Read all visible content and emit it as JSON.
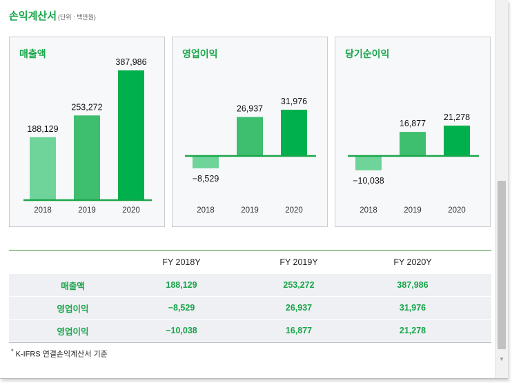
{
  "section": {
    "title": "손익계산서",
    "unit": "(단위 : 백만원)"
  },
  "colors": {
    "accent": "#1aa64a",
    "bar_2018": "#6fd49a",
    "bar_2019": "#3ebe6f",
    "bar_2020": "#00b04c",
    "baseline": "#1aa64a"
  },
  "chart_data": [
    {
      "type": "bar",
      "title": "매출액",
      "categories": [
        "2018",
        "2019",
        "2020"
      ],
      "values": [
        188129,
        253272,
        387986
      ],
      "value_labels": [
        "188,129",
        "253,272",
        "387,986"
      ],
      "ylim": [
        0,
        390000
      ]
    },
    {
      "type": "bar",
      "title": "영업이익",
      "categories": [
        "2018",
        "2019",
        "2020"
      ],
      "values": [
        -8529,
        26937,
        31976
      ],
      "value_labels": [
        "−8,529",
        "26,937",
        "31,976"
      ],
      "ylim": [
        -10000,
        40000
      ]
    },
    {
      "type": "bar",
      "title": "당기순이익",
      "categories": [
        "2018",
        "2019",
        "2020"
      ],
      "values": [
        -10038,
        16877,
        21278
      ],
      "value_labels": [
        "−10,038",
        "16,877",
        "21,278"
      ],
      "ylim": [
        -12000,
        40000
      ]
    }
  ],
  "table": {
    "headers": [
      "",
      "FY 2018Y",
      "FY 2019Y",
      "FY 2020Y"
    ],
    "rows": [
      {
        "label": "매출액",
        "values": [
          "188,129",
          "253,272",
          "387,986"
        ]
      },
      {
        "label": "영업이익",
        "values": [
          "−8,529",
          "26,937",
          "31,976"
        ]
      },
      {
        "label": "영업이익",
        "values": [
          "−10,038",
          "16,877",
          "21,278"
        ]
      }
    ]
  },
  "footnote": {
    "mark": "*",
    "text": "K-IFRS 연결손익계산서 기준"
  }
}
